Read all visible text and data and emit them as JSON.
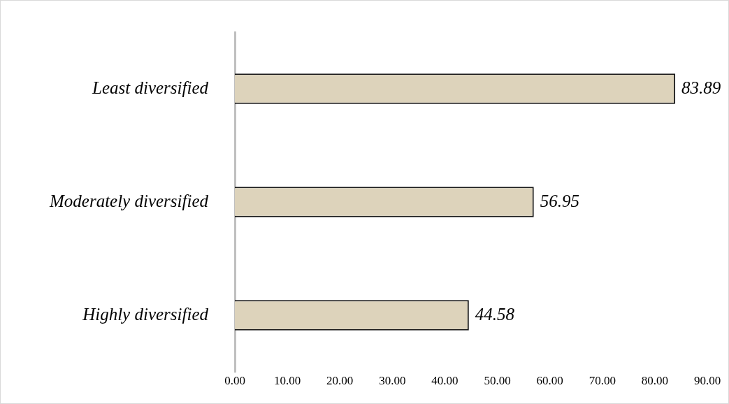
{
  "chart_data": {
    "type": "bar",
    "orientation": "horizontal",
    "categories": [
      "Least diversified",
      "Moderately diversified",
      "Highly diversified"
    ],
    "values": [
      83.89,
      56.95,
      44.58
    ],
    "color": "#ddd3bb",
    "xlim": [
      0,
      90
    ],
    "xticks": [
      {
        "value": 0,
        "label": "0.00"
      },
      {
        "value": 10,
        "label": "10.00"
      },
      {
        "value": 20,
        "label": "20.00"
      },
      {
        "value": 30,
        "label": "30.00"
      },
      {
        "value": 40,
        "label": "40.00"
      },
      {
        "value": 50,
        "label": "50.00"
      },
      {
        "value": 60,
        "label": "60.00"
      },
      {
        "value": 70,
        "label": "70.00"
      },
      {
        "value": 80,
        "label": "80.00"
      },
      {
        "value": 90,
        "label": "90.00"
      }
    ],
    "data_labels": true,
    "grid": false,
    "legend": false
  }
}
